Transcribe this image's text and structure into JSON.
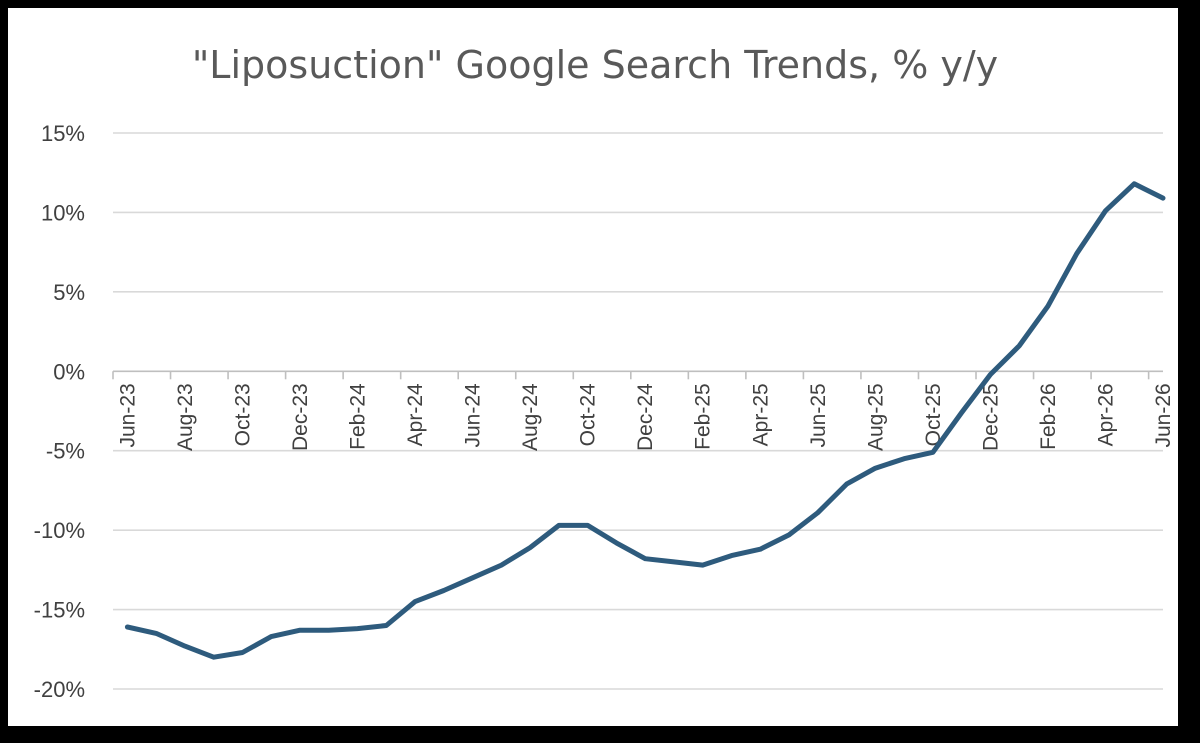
{
  "chart_data": {
    "type": "line",
    "title": "\"Liposuction\" Google Search Trends,  % y/y",
    "xlabel": "",
    "ylabel": "",
    "ylim": [
      -20,
      15
    ],
    "yticks": [
      15,
      10,
      5,
      0,
      -5,
      -10,
      -15,
      -20
    ],
    "ytick_labels": [
      "15%",
      "10%",
      "5%",
      "0%",
      "-5%",
      "-10%",
      "-15%",
      "-20%"
    ],
    "xtick_labels": [
      "Jun-23",
      "Aug-23",
      "Oct-23",
      "Dec-23",
      "Feb-24",
      "Apr-24",
      "Jun-24",
      "Aug-24",
      "Oct-24",
      "Dec-24",
      "Feb-25",
      "Apr-25",
      "Jun-25",
      "Aug-25",
      "Oct-25",
      "Dec-25",
      "Feb-26",
      "Apr-26",
      "Jun-26"
    ],
    "grid": true,
    "legend": "none",
    "color": "#2e5b7d",
    "series": [
      {
        "x": [
          "Jun-23",
          "Jul-23",
          "Aug-23",
          "Sep-23",
          "Oct-23",
          "Nov-23",
          "Dec-23",
          "Jan-24",
          "Feb-24",
          "Mar-24",
          "Apr-24",
          "May-24",
          "Jun-24",
          "Jul-24",
          "Aug-24",
          "Sep-24",
          "Oct-24",
          "Nov-24",
          "Dec-24",
          "Jan-25",
          "Feb-25",
          "Mar-25",
          "Apr-25",
          "May-25",
          "Jun-25",
          "Jul-25",
          "Aug-25",
          "Sep-25",
          "Oct-25",
          "Nov-25",
          "Dec-25",
          "Jan-26",
          "Feb-26",
          "Mar-26",
          "Apr-26",
          "May-26",
          "Jun-26"
        ],
        "values": [
          -16.1,
          -16.5,
          -17.3,
          -18.0,
          -17.7,
          -16.7,
          -16.3,
          -16.3,
          -16.2,
          -16.0,
          -14.5,
          -13.8,
          -13.0,
          -12.2,
          -11.1,
          -9.7,
          -9.7,
          -10.8,
          -11.8,
          -12.0,
          -12.2,
          -11.6,
          -11.2,
          -10.3,
          -8.9,
          -7.1,
          -6.1,
          -5.5,
          -5.1,
          -2.6,
          -0.2,
          1.6,
          4.1,
          7.4,
          10.1,
          11.8,
          10.9
        ]
      }
    ]
  }
}
